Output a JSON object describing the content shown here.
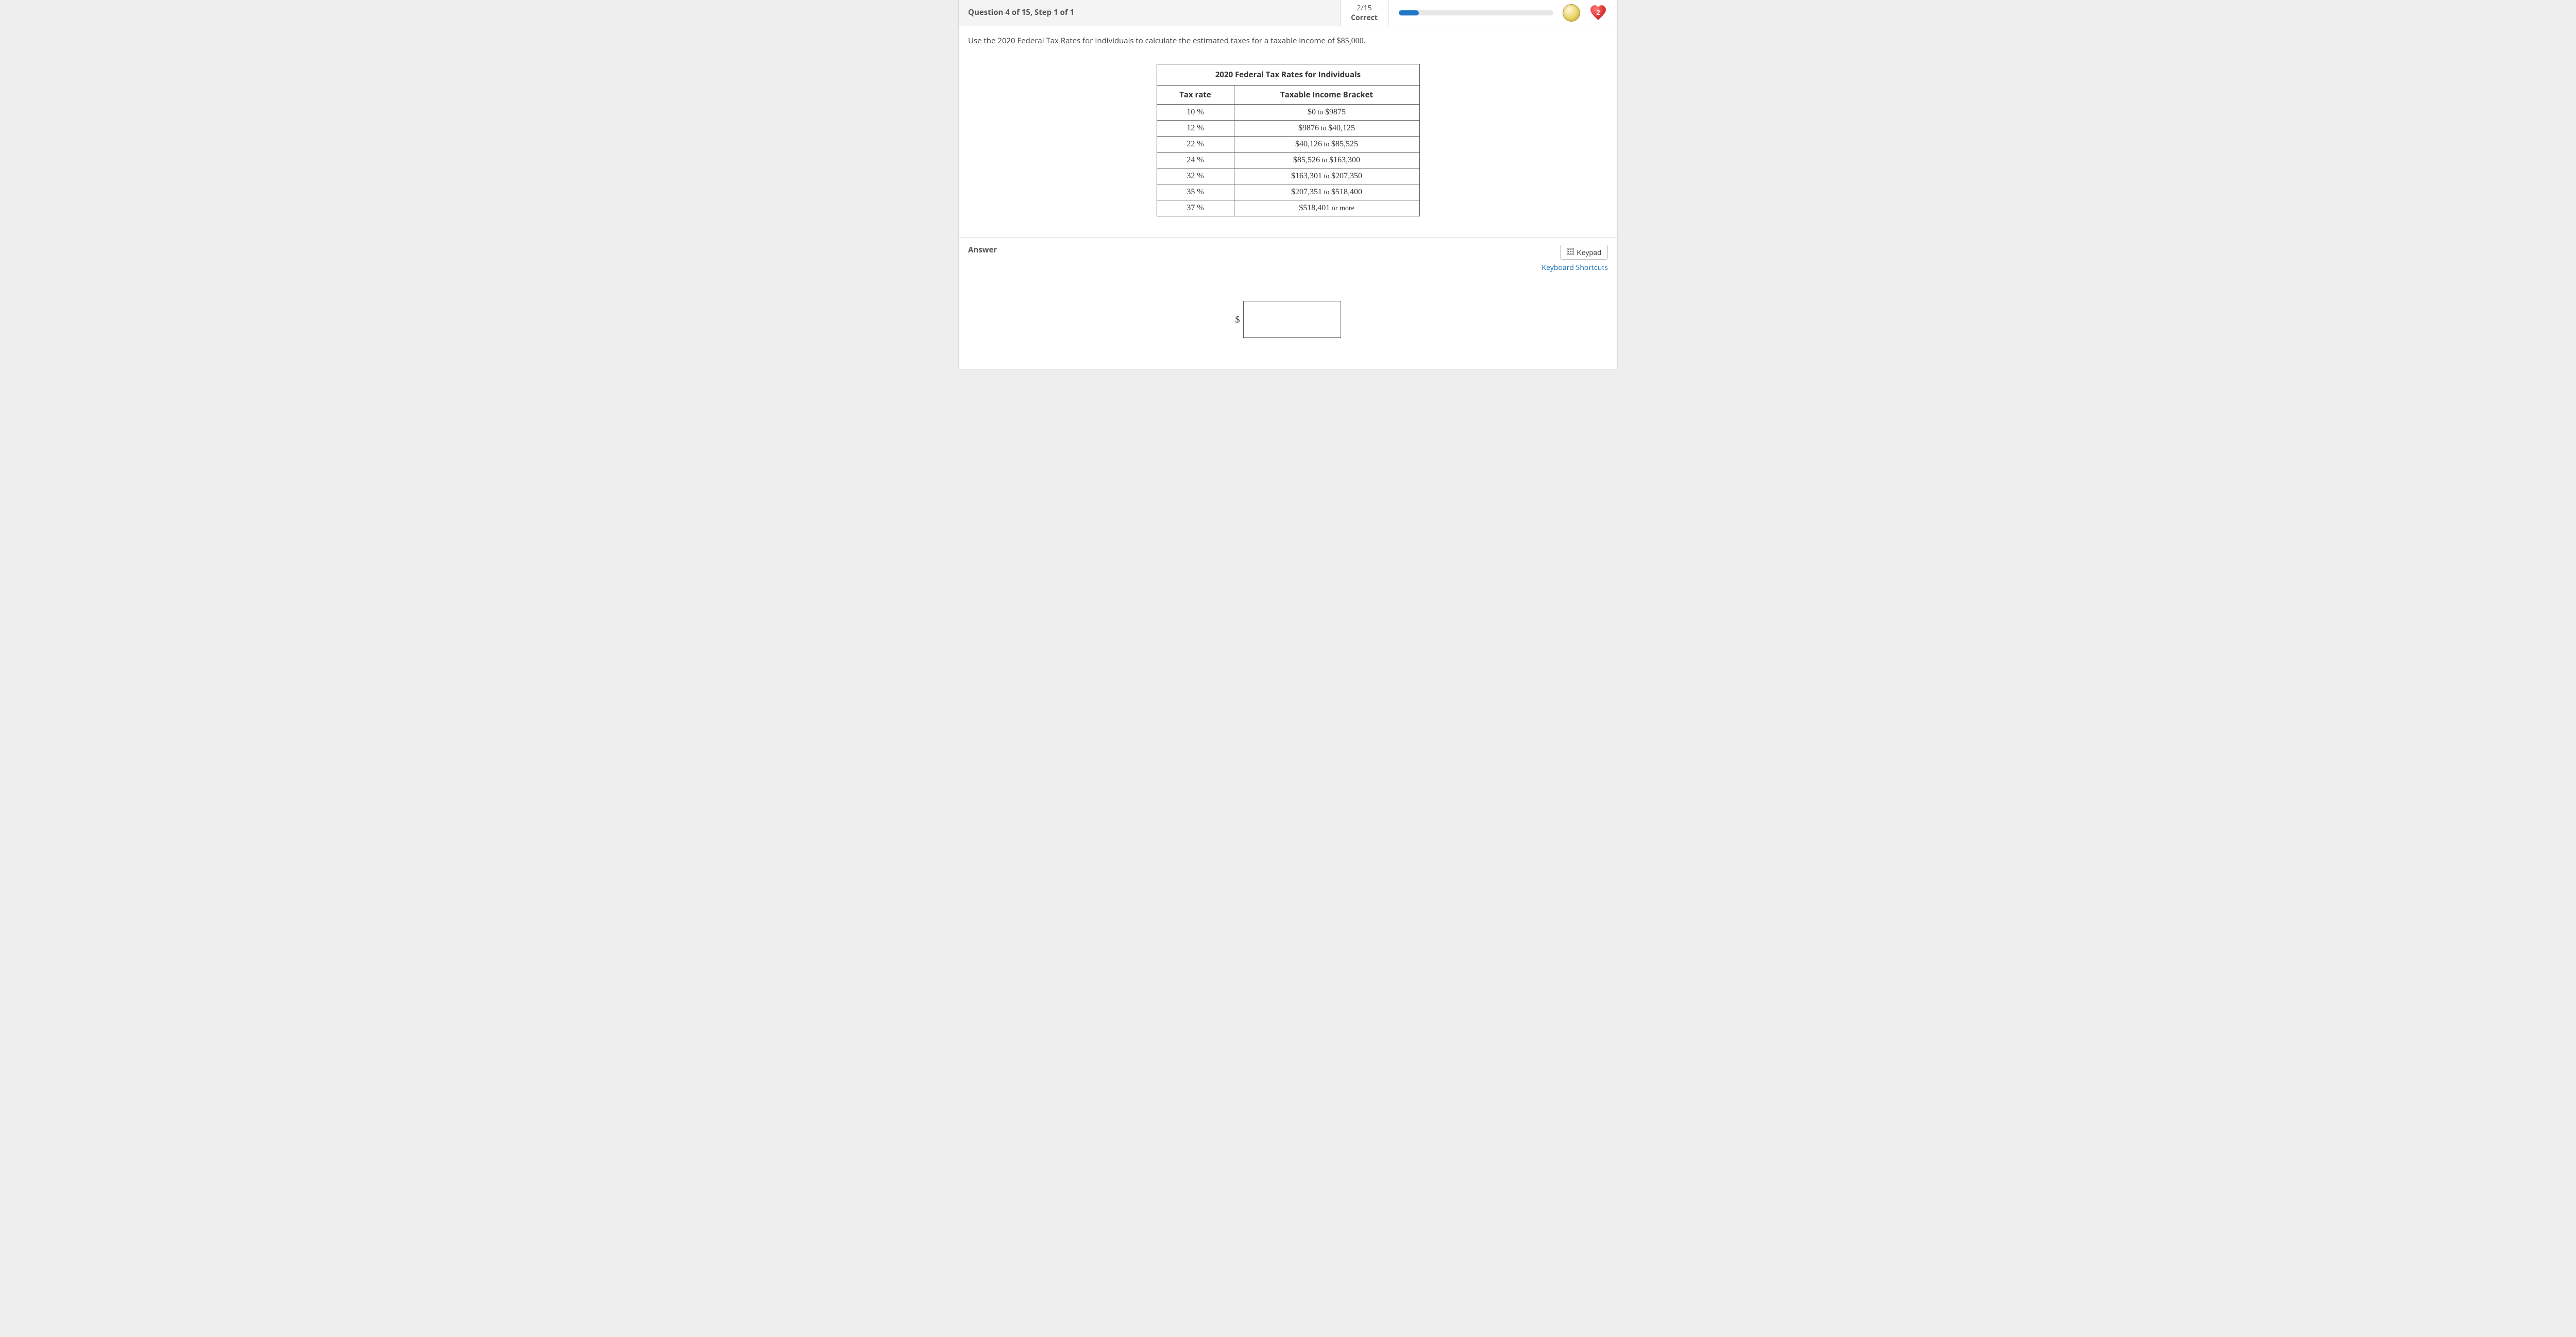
{
  "header": {
    "title": "Question 4 of 15, Step 1 of 1",
    "score_top": "2/15",
    "score_bottom": "Correct",
    "progress_percent": 13,
    "heart_count": "2"
  },
  "prompt": {
    "text_before": "Use the 2020 Federal Tax Rates for Individuals to calculate the estimated taxes for a taxable income of ",
    "amount": "$85,000",
    "text_after": "."
  },
  "table": {
    "title": "2020 Federal Tax Rates for Individuals",
    "col1": "Tax rate",
    "col2": "Taxable Income Bracket",
    "rows": [
      {
        "rate": "10 %",
        "b1": "$0",
        "mid": " to ",
        "b2": "$9875"
      },
      {
        "rate": "12 %",
        "b1": "$9876",
        "mid": " to ",
        "b2": "$40,125"
      },
      {
        "rate": "22 %",
        "b1": "$40,126",
        "mid": " to ",
        "b2": "$85,525"
      },
      {
        "rate": "24 %",
        "b1": "$85,526",
        "mid": " to ",
        "b2": "$163,300"
      },
      {
        "rate": "32 %",
        "b1": "$163,301",
        "mid": " to ",
        "b2": "$207,350"
      },
      {
        "rate": "35 %",
        "b1": "$207,351",
        "mid": " to ",
        "b2": "$518,400"
      },
      {
        "rate": "37 %",
        "b1": "$518,401",
        "mid": " or more",
        "b2": ""
      }
    ]
  },
  "answer": {
    "label": "Answer",
    "keypad_label": "Keypad",
    "shortcuts_label": "Keyboard Shortcuts",
    "currency": "$",
    "value": ""
  },
  "colors": {
    "page_bg": "#eeeeee",
    "panel_bg": "#ffffff",
    "border": "#d9d9d9",
    "header_bg": "#f4f4f4",
    "progress_bg": "#e6e6e6",
    "progress_fill": "#2176c7",
    "link": "#1a6fb5",
    "text": "#333333"
  }
}
